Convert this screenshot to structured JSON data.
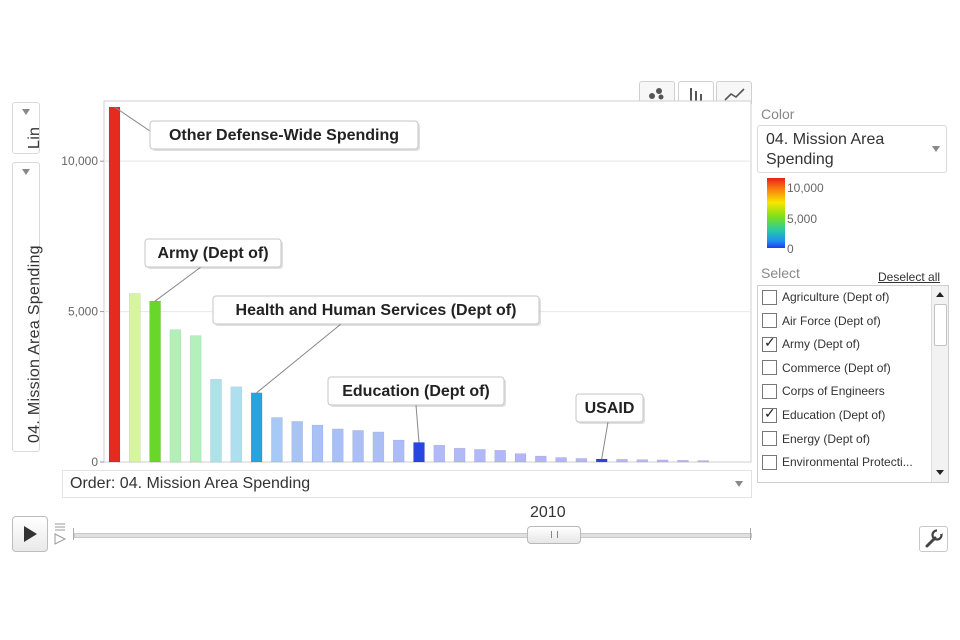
{
  "y_axis_scale": {
    "label": "Lin"
  },
  "y_axis_metric": {
    "label": "04. Mission Area Spending"
  },
  "order_select": {
    "label": "Order: 04. Mission Area Spending"
  },
  "color_panel": {
    "title": "Color",
    "selected": "04. Mission Area Spending",
    "legend_ticks": [
      "10,000",
      "5,000",
      "0"
    ]
  },
  "select_panel": {
    "title": "Select",
    "deselect_label": "Deselect all",
    "items": [
      {
        "label": "Agriculture (Dept of)",
        "checked": false
      },
      {
        "label": "Air Force (Dept of)",
        "checked": false
      },
      {
        "label": "Army (Dept of)",
        "checked": true
      },
      {
        "label": "Commerce (Dept of)",
        "checked": false
      },
      {
        "label": "Corps of Engineers",
        "checked": false
      },
      {
        "label": "Education (Dept of)",
        "checked": true
      },
      {
        "label": "Energy (Dept of)",
        "checked": false
      },
      {
        "label": "Environmental Protecti...",
        "checked": false
      }
    ]
  },
  "timeline": {
    "year": "2010"
  },
  "chart_data": {
    "type": "bar",
    "ylim": [
      0,
      12000
    ],
    "y_ticks": [
      0,
      5000,
      10000
    ],
    "y_tick_labels": [
      "0",
      "5,000",
      "10,000"
    ],
    "grid": true,
    "values": [
      11800,
      5600,
      5350,
      4400,
      4200,
      2750,
      2500,
      2300,
      1480,
      1350,
      1230,
      1100,
      1050,
      1000,
      730,
      650,
      560,
      460,
      420,
      390,
      280,
      200,
      150,
      120,
      100,
      90,
      80,
      70,
      60,
      50
    ],
    "colors": [
      "#e52b1e",
      "#d7f4a0",
      "#69d62a",
      "#b3f0b8",
      "#b3f0bc",
      "#ace2e8",
      "#aedfee",
      "#27a3df",
      "#a7c9f5",
      "#a7c4f5",
      "#a9c2f5",
      "#a9c0f6",
      "#abbff6",
      "#abbef6",
      "#adbcf6",
      "#2846e0",
      "#afbaf7",
      "#b1b9f7",
      "#b1b8f7",
      "#b2b7f7",
      "#b3b6f7",
      "#b4b5f7",
      "#b5b5f7",
      "#b6b5f7",
      "#2f44d4",
      "#b7b5f7",
      "#b8b5f7",
      "#b9b5f7",
      "#bab5f7",
      "#bbb5f7"
    ],
    "annotations": [
      {
        "label": "Other Defense-Wide Spending",
        "bar_index": 0
      },
      {
        "label": "Army (Dept of)",
        "bar_index": 2
      },
      {
        "label": "Health and Human Services (Dept of)",
        "bar_index": 7
      },
      {
        "label": "Education (Dept of)",
        "bar_index": 15
      },
      {
        "label": "USAID",
        "bar_index": 24
      }
    ]
  }
}
